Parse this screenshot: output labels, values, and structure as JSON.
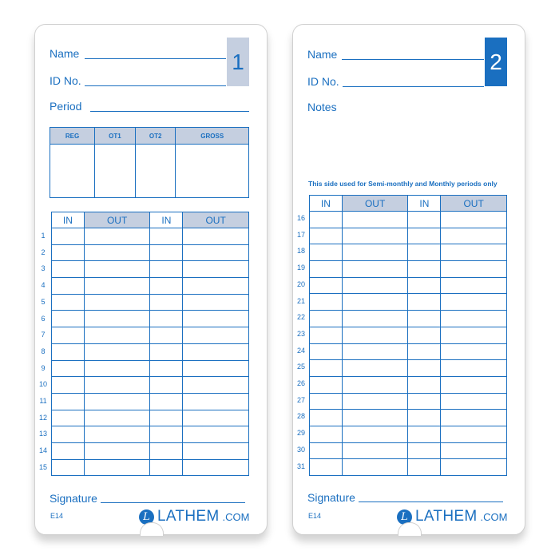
{
  "card1": {
    "number": "1",
    "name_label": "Name",
    "id_label": "ID No.",
    "period_label": "Period",
    "summary_headers": [
      "REG",
      "OT1",
      "OT2",
      "GROSS"
    ],
    "time_headers": [
      "IN",
      "OUT",
      "IN",
      "OUT"
    ],
    "rows": [
      "1",
      "2",
      "3",
      "4",
      "5",
      "6",
      "7",
      "8",
      "9",
      "10",
      "11",
      "12",
      "13",
      "14",
      "15"
    ],
    "signature_label": "Signature",
    "code": "E14",
    "logo_brand": "LATHEM",
    "logo_domain": ".COM",
    "logo_mark": "L"
  },
  "card2": {
    "number": "2",
    "name_label": "Name",
    "id_label": "ID No.",
    "notes_label": "Notes",
    "note": "This side used for Semi-monthly and Monthly periods only",
    "time_headers": [
      "IN",
      "OUT",
      "IN",
      "OUT"
    ],
    "rows": [
      "16",
      "17",
      "18",
      "19",
      "20",
      "21",
      "22",
      "23",
      "24",
      "25",
      "26",
      "27",
      "28",
      "29",
      "30",
      "31"
    ],
    "signature_label": "Signature",
    "code": "E14",
    "logo_brand": "LATHEM",
    "logo_domain": ".COM",
    "logo_mark": "L"
  },
  "colors": {
    "ink": "#1a6fc0",
    "header_fill": "#c5cfe0"
  }
}
